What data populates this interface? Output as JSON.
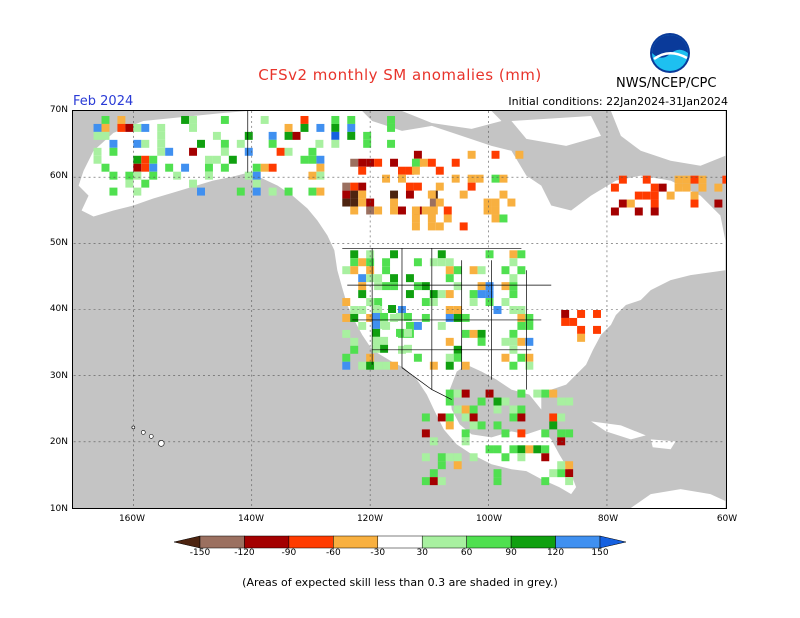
{
  "header": {
    "title": "CFSv2 monthly SM anomalies (mm)",
    "month": "Feb 2024",
    "initial_conditions": "Initial conditions: 22Jan2024-31Jan2024",
    "agency": "NWS/NCEP/CPC",
    "logo_text": "NOAA"
  },
  "axes": {
    "lat_labels": [
      "70N",
      "60N",
      "50N",
      "40N",
      "30N",
      "20N",
      "10N"
    ],
    "lon_labels": [
      "160W",
      "140W",
      "120W",
      "100W",
      "80W",
      "60W"
    ]
  },
  "legend": {
    "tick_labels": [
      "-150",
      "-120",
      "-90",
      "-60",
      "-30",
      "30",
      "60",
      "90",
      "120",
      "150"
    ],
    "colors": [
      "#4d2410",
      "#9b7060",
      "#a40000",
      "#ff3b00",
      "#f8b040",
      "#ffffff",
      "#a8f0a0",
      "#50e050",
      "#10a010",
      "#4090f0",
      "#1560e0"
    ]
  },
  "footnote": "(Areas of expected skill less than 0.3 are shaded in grey.)",
  "colors": {
    "ocean": "#c4c4c4",
    "land": "#ffffff",
    "title": "#e8342b",
    "month": "#2a3bd6"
  }
}
